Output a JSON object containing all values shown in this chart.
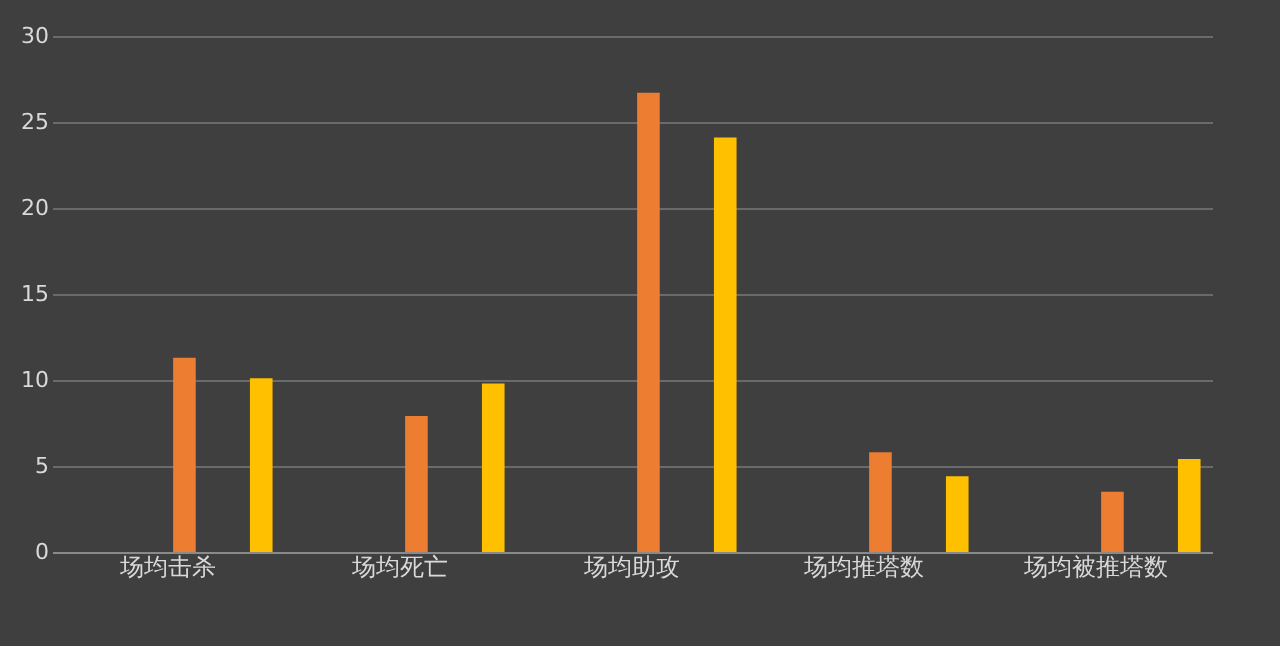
{
  "chart_data": {
    "type": "bar",
    "categories": [
      "场均击杀",
      "场均死亡",
      "场均助攻",
      "场均推塔数",
      "场均被推塔数"
    ],
    "series": [
      {
        "color": "#ed7d31",
        "values": [
          11.3,
          7.9,
          26.7,
          5.8,
          3.5
        ]
      },
      {
        "color": "#ffc000",
        "values": [
          10.1,
          9.8,
          24.1,
          4.4,
          5.4
        ]
      }
    ],
    "ylim": [
      0,
      30
    ],
    "yticks": [
      0,
      5,
      10,
      15,
      20,
      25,
      30
    ],
    "grid": "y"
  }
}
